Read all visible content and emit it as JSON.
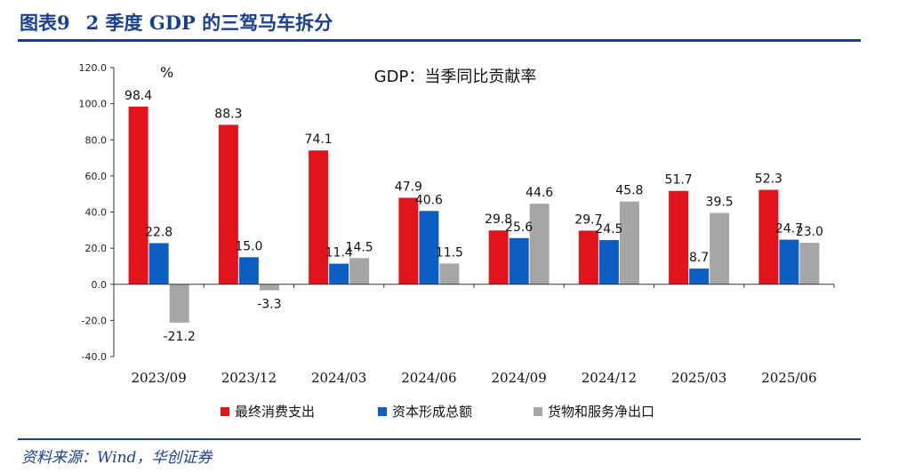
{
  "figure": {
    "number": "图表9",
    "title": "2 季度 GDP 的三驾马车拆分",
    "source": "资料来源：Wind，华创证券"
  },
  "chart_data": {
    "type": "bar",
    "title": "GDP：当季同比贡献率",
    "unit": "%",
    "categories": [
      "2023/09",
      "2023/12",
      "2024/03",
      "2024/06",
      "2024/09",
      "2024/12",
      "2025/03",
      "2025/06"
    ],
    "series": [
      {
        "name": "最终消费支出",
        "color": "#e3131b",
        "values": [
          98.4,
          88.3,
          74.1,
          47.9,
          29.8,
          29.7,
          51.7,
          52.3
        ]
      },
      {
        "name": "资本形成总额",
        "color": "#0b5fc2",
        "values": [
          22.8,
          15.0,
          11.4,
          40.6,
          25.6,
          24.5,
          8.7,
          24.7
        ]
      },
      {
        "name": "货物和服务净出口",
        "color": "#a6a6a6",
        "values": [
          -21.2,
          -3.3,
          14.5,
          11.5,
          44.6,
          45.8,
          39.5,
          23.0
        ]
      }
    ],
    "data_labels": [
      [
        "98.4",
        "88.3",
        "74.1",
        "47.9",
        "29.8",
        "29.7",
        "51.7",
        "52.3"
      ],
      [
        "22.8",
        "15.0",
        "11.4",
        "40.6",
        "25.6",
        "24.5",
        "8.7",
        "24.7"
      ],
      [
        "-21.2",
        "-3.3",
        "14.5",
        "11.5",
        "44.6",
        "45.8",
        "39.5",
        "23.0"
      ]
    ],
    "ylim": [
      -40,
      120
    ],
    "yticks": [
      -40,
      -20,
      0,
      20,
      40,
      60,
      80,
      100,
      120
    ],
    "ytick_labels": [
      "-40.0",
      "-20.0",
      "0.0",
      "20.0",
      "40.0",
      "60.0",
      "80.0",
      "100.0",
      "120.0"
    ],
    "legend_position": "bottom",
    "grid": false
  }
}
